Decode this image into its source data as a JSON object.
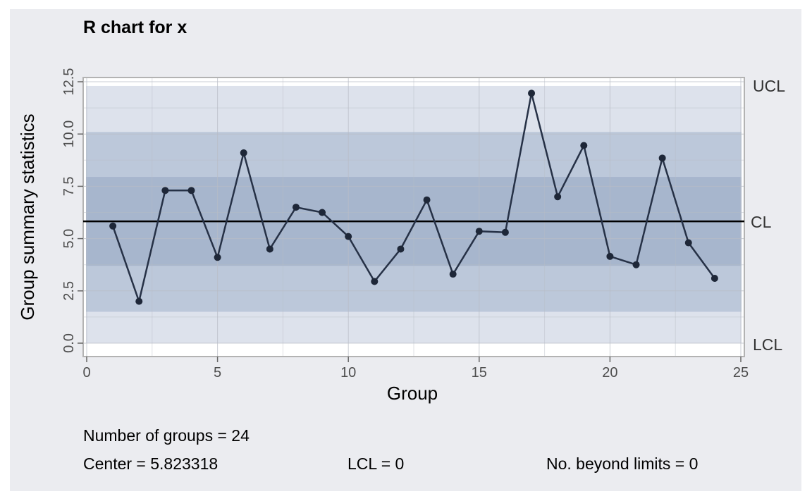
{
  "chart_data": {
    "type": "line",
    "title": "R chart for x",
    "xlabel": "Group",
    "ylabel": "Group summary statistics",
    "xlim": [
      0,
      25
    ],
    "ylim": [
      0,
      12.5
    ],
    "x_ticks": [
      0,
      5,
      10,
      15,
      20,
      25
    ],
    "x_tick_labels": [
      "0",
      "5",
      "10",
      "15",
      "20",
      "25"
    ],
    "y_ticks": [
      0,
      2.5,
      5,
      7.5,
      10,
      12.5
    ],
    "y_tick_labels": [
      "0.0",
      "2.5",
      "5.0",
      "7.5",
      "10.0",
      "12.5"
    ],
    "grid": true,
    "x": [
      1,
      2,
      3,
      4,
      5,
      6,
      7,
      8,
      9,
      10,
      11,
      12,
      13,
      14,
      15,
      16,
      17,
      18,
      19,
      20,
      21,
      22,
      23,
      24
    ],
    "values": [
      5.6,
      2.0,
      7.3,
      7.3,
      4.1,
      9.1,
      4.5,
      6.5,
      6.25,
      5.1,
      2.95,
      4.5,
      6.85,
      3.3,
      5.35,
      5.3,
      11.95,
      7.0,
      9.45,
      4.15,
      3.75,
      8.85,
      4.8,
      3.1
    ],
    "center": 5.823318,
    "ucl": 12.3,
    "lcl": 0,
    "zones": [
      {
        "from": 0,
        "to": 12.3,
        "color": "#dde2ec"
      },
      {
        "from": 1.5,
        "to": 10.1,
        "color": "#bcc8da"
      },
      {
        "from": 3.7,
        "to": 7.95,
        "color": "#a7b6cd"
      }
    ],
    "limit_labels": {
      "ucl": "UCL",
      "cl": "CL",
      "lcl": "LCL"
    },
    "line_color": "#263146",
    "point_color": "#1e2738",
    "center_line_color": "#000000"
  },
  "stats": {
    "groups": "Number of groups = 24",
    "center": "Center = 5.823318",
    "lcl": "LCL = 0",
    "beyond": "No. beyond limits = 0"
  }
}
